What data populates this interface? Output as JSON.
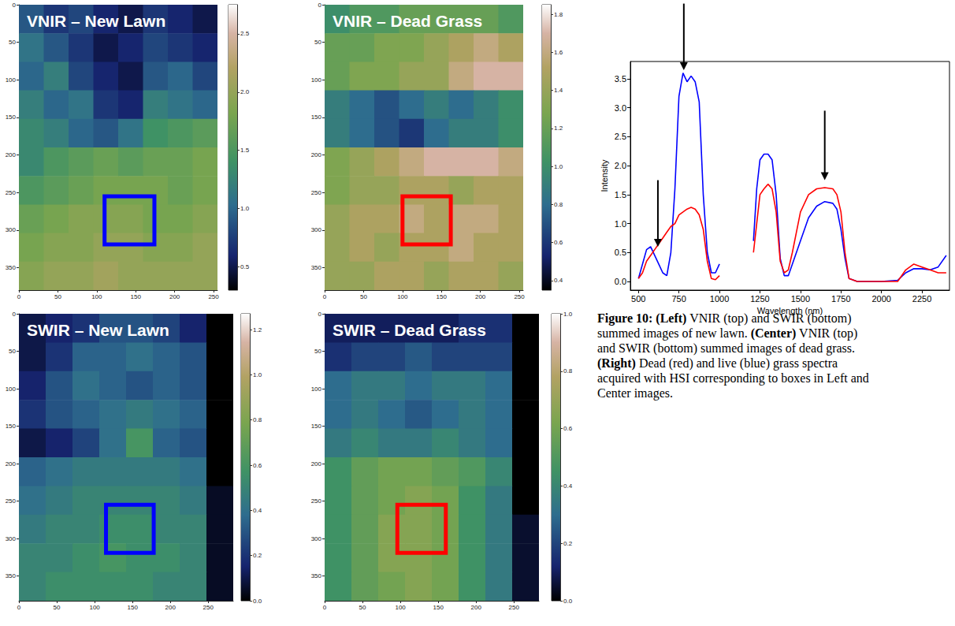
{
  "chart_data": [
    {
      "type": "heatmap",
      "title": "VNIR – New Lawn",
      "xlim": [
        0,
        255
      ],
      "ylim": [
        0,
        380
      ],
      "xticks": [
        0,
        50,
        100,
        150,
        200,
        250
      ],
      "yticks": [
        0,
        50,
        100,
        150,
        200,
        250,
        300,
        350
      ],
      "cells": [
        [
          0.9,
          0.7,
          0.8,
          0.6,
          0.5,
          0.7,
          0.6,
          0.5
        ],
        [
          1.1,
          0.9,
          0.7,
          0.5,
          0.6,
          0.8,
          0.7,
          0.6
        ],
        [
          1.0,
          1.2,
          0.8,
          0.6,
          0.5,
          0.9,
          1.0,
          0.8
        ],
        [
          1.2,
          1.0,
          1.1,
          0.7,
          0.6,
          1.2,
          1.1,
          1.0
        ],
        [
          1.3,
          1.2,
          1.0,
          0.9,
          1.1,
          1.4,
          1.5,
          1.6
        ],
        [
          1.3,
          1.5,
          1.6,
          1.7,
          1.6,
          1.7,
          1.7,
          1.8
        ],
        [
          1.5,
          1.6,
          1.7,
          1.8,
          1.8,
          1.8,
          1.7,
          1.8
        ],
        [
          1.7,
          1.8,
          1.9,
          1.9,
          1.9,
          1.8,
          1.8,
          1.9
        ],
        [
          1.8,
          1.9,
          1.9,
          2.0,
          2.0,
          1.9,
          1.9,
          2.0
        ],
        [
          1.9,
          2.0,
          2.0,
          2.1,
          2.0,
          2.0,
          2.0,
          2.0
        ]
      ],
      "colorbar": {
        "range": [
          0.3,
          2.75
        ],
        "ticks": [
          0.5,
          {
            "value": 1,
            "label": "1.0"
          },
          1.5,
          {
            "value": 2,
            "label": "2.0"
          },
          2.5
        ]
      },
      "region": {
        "x": [
          110,
          174
        ],
        "y": [
          255,
          319
        ],
        "color": "#0000ff"
      }
    },
    {
      "type": "heatmap",
      "title": "VNIR – Dead Grass",
      "xlim": [
        0,
        255
      ],
      "ylim": [
        0,
        380
      ],
      "xticks": [
        0,
        50,
        100,
        150,
        200,
        250
      ],
      "yticks": [
        0,
        50,
        100,
        150,
        200,
        250,
        300,
        350
      ],
      "cells": [
        [
          1.0,
          1.1,
          1.1,
          1.2,
          1.2,
          1.2,
          1.2,
          1.1
        ],
        [
          1.2,
          1.2,
          1.3,
          1.3,
          1.4,
          1.5,
          1.6,
          1.5
        ],
        [
          1.2,
          1.3,
          1.3,
          1.4,
          1.4,
          1.6,
          1.7,
          1.7
        ],
        [
          0.9,
          0.8,
          0.7,
          0.8,
          0.9,
          0.8,
          0.9,
          1.0
        ],
        [
          0.9,
          0.8,
          0.7,
          0.6,
          0.8,
          0.9,
          0.9,
          1.0
        ],
        [
          1.3,
          1.4,
          1.5,
          1.6,
          1.7,
          1.7,
          1.7,
          1.6
        ],
        [
          1.3,
          1.4,
          1.4,
          1.5,
          1.5,
          1.4,
          1.5,
          1.5
        ],
        [
          1.4,
          1.5,
          1.5,
          1.6,
          1.5,
          1.6,
          1.6,
          1.5
        ],
        [
          1.4,
          1.5,
          1.4,
          1.5,
          1.5,
          1.6,
          1.5,
          1.5
        ],
        [
          1.4,
          1.4,
          1.5,
          1.5,
          1.4,
          1.5,
          1.5,
          1.4
        ]
      ],
      "colorbar": {
        "range": [
          0.35,
          1.85
        ],
        "ticks": [
          0.4,
          0.6,
          0.8,
          {
            "value": 1,
            "label": "1.0"
          },
          1.2,
          1.4,
          1.6,
          1.8
        ]
      },
      "region": {
        "x": [
          100,
          162
        ],
        "y": [
          255,
          319
        ],
        "color": "#ff0000"
      }
    },
    {
      "type": "heatmap",
      "title": "SWIR – New Lawn",
      "xlim": [
        0,
        283
      ],
      "ylim": [
        0,
        383
      ],
      "xticks": [
        0,
        50,
        100,
        150,
        200,
        250
      ],
      "yticks": [
        0,
        50,
        100,
        150,
        200,
        250,
        300,
        350
      ],
      "cells": [
        [
          0.1,
          0.15,
          0.2,
          0.3,
          0.3,
          0.25,
          0.15,
          0.0
        ],
        [
          0.1,
          0.2,
          0.35,
          0.35,
          0.4,
          0.35,
          0.3,
          0.0
        ],
        [
          0.15,
          0.3,
          0.4,
          0.35,
          0.3,
          0.35,
          0.3,
          0.0
        ],
        [
          0.2,
          0.3,
          0.35,
          0.4,
          0.45,
          0.4,
          0.35,
          0.0
        ],
        [
          0.1,
          0.15,
          0.25,
          0.4,
          0.6,
          0.35,
          0.3,
          0.0
        ],
        [
          0.35,
          0.4,
          0.45,
          0.45,
          0.45,
          0.45,
          0.4,
          0.0
        ],
        [
          0.4,
          0.45,
          0.5,
          0.5,
          0.5,
          0.5,
          0.45,
          0.05
        ],
        [
          0.45,
          0.5,
          0.5,
          0.55,
          0.55,
          0.5,
          0.5,
          0.05
        ],
        [
          0.5,
          0.5,
          0.55,
          0.6,
          0.55,
          0.55,
          0.5,
          0.05
        ],
        [
          0.5,
          0.55,
          0.55,
          0.55,
          0.55,
          0.5,
          0.5,
          0.05
        ]
      ],
      "colorbar": {
        "range": [
          0,
          1.27
        ],
        "ticks": [
          {
            "value": 0,
            "label": "0.0"
          },
          0.2,
          0.4,
          0.6,
          0.8,
          {
            "value": 1,
            "label": "1.0"
          },
          1.2
        ]
      },
      "region": {
        "x": [
          115,
          178
        ],
        "y": [
          255,
          319
        ],
        "color": "#0000ff"
      }
    },
    {
      "type": "heatmap",
      "title": "SWIR – Dead Grass",
      "xlim": [
        0,
        283
      ],
      "ylim": [
        0,
        383
      ],
      "xticks": [
        0,
        50,
        100,
        150,
        200,
        250
      ],
      "yticks": [
        0,
        50,
        100,
        150,
        200,
        250,
        300,
        350
      ],
      "cells": [
        [
          0.1,
          0.1,
          0.1,
          0.1,
          0.1,
          0.15,
          0.15,
          0.0
        ],
        [
          0.15,
          0.2,
          0.2,
          0.25,
          0.2,
          0.2,
          0.2,
          0.0
        ],
        [
          0.3,
          0.35,
          0.35,
          0.3,
          0.35,
          0.35,
          0.3,
          0.0
        ],
        [
          0.3,
          0.35,
          0.3,
          0.25,
          0.3,
          0.35,
          0.3,
          0.0
        ],
        [
          0.35,
          0.4,
          0.35,
          0.35,
          0.4,
          0.35,
          0.3,
          0.0
        ],
        [
          0.45,
          0.55,
          0.6,
          0.6,
          0.55,
          0.5,
          0.4,
          0.0
        ],
        [
          0.45,
          0.55,
          0.6,
          0.65,
          0.6,
          0.45,
          0.35,
          0.0
        ],
        [
          0.45,
          0.55,
          0.65,
          0.65,
          0.6,
          0.45,
          0.35,
          0.05
        ],
        [
          0.45,
          0.55,
          0.65,
          0.65,
          0.6,
          0.45,
          0.35,
          0.05
        ],
        [
          0.45,
          0.55,
          0.6,
          0.65,
          0.6,
          0.45,
          0.35,
          0.05
        ]
      ],
      "colorbar": {
        "range": [
          0,
          1.0
        ],
        "ticks": [
          {
            "value": 0,
            "label": "0.0"
          },
          0.2,
          0.4,
          0.6,
          0.8,
          {
            "value": 1,
            "label": "1.0"
          }
        ]
      },
      "region": {
        "x": [
          96,
          160
        ],
        "y": [
          255,
          319
        ],
        "color": "#ff0000"
      }
    },
    {
      "type": "line",
      "x_label": "Wavelength (nm)",
      "y_label": "Intensity",
      "xlim": [
        450,
        2420
      ],
      "ylim": [
        -0.15,
        3.8
      ],
      "xticks": [
        500,
        750,
        1000,
        1250,
        1500,
        1750,
        2000,
        2250
      ],
      "yticks": [
        {
          "value": 0,
          "label": "0.0"
        },
        0.5,
        {
          "value": 1,
          "label": "1.0"
        },
        1.5,
        {
          "value": 2,
          "label": "2.0"
        },
        2.5,
        {
          "value": 3,
          "label": "3.0"
        },
        3.5
      ],
      "x": [
        500,
        525,
        550,
        575,
        600,
        625,
        650,
        675,
        700,
        725,
        750,
        775,
        800,
        825,
        850,
        875,
        900,
        925,
        950,
        975,
        1000,
        1100,
        1210,
        1230,
        1250,
        1275,
        1300,
        1325,
        1350,
        1375,
        1400,
        1425,
        1450,
        1500,
        1550,
        1600,
        1650,
        1700,
        1725,
        1750,
        1775,
        1800,
        1850,
        1900,
        2000,
        2100,
        2150,
        2200,
        2250,
        2300,
        2350,
        2400
      ],
      "series": [
        {
          "color": "#0000ff",
          "values": [
            0.05,
            0.3,
            0.55,
            0.6,
            0.45,
            0.3,
            0.15,
            0.1,
            0.5,
            1.6,
            3.2,
            3.6,
            3.45,
            3.55,
            3.45,
            3.1,
            1.5,
            0.5,
            0.15,
            0.15,
            0.3,
            null,
            0.7,
            1.6,
            2.1,
            2.2,
            2.2,
            2.1,
            1.5,
            0.4,
            0.1,
            0.1,
            0.3,
            0.7,
            1.1,
            1.3,
            1.38,
            1.35,
            1.25,
            0.9,
            0.4,
            0.05,
            0.0,
            0.0,
            0.0,
            0.02,
            0.15,
            0.22,
            0.22,
            0.2,
            0.25,
            0.45
          ]
        },
        {
          "color": "#ff0000",
          "values": [
            0.05,
            0.15,
            0.35,
            0.45,
            0.55,
            0.65,
            0.75,
            0.85,
            0.95,
            1.0,
            1.15,
            1.2,
            1.25,
            1.28,
            1.25,
            1.15,
            0.9,
            0.35,
            0.05,
            0.03,
            0.1,
            null,
            0.5,
            1.0,
            1.5,
            1.6,
            1.68,
            1.6,
            1.2,
            0.35,
            0.15,
            0.2,
            0.5,
            1.2,
            1.5,
            1.6,
            1.62,
            1.6,
            1.5,
            1.2,
            0.5,
            0.05,
            0.0,
            0.0,
            0.0,
            0.0,
            0.2,
            0.3,
            0.25,
            0.2,
            0.15,
            0.15
          ]
        }
      ],
      "arrows": [
        {
          "x": 780,
          "from": 4.8,
          "to": 3.65
        },
        {
          "x": 620,
          "from": 1.75,
          "to": 0.6
        },
        {
          "x": 1650,
          "from": 2.95,
          "to": 1.75
        }
      ]
    }
  ],
  "caption": [
    {
      "text": "Figure 10:",
      "bold": true
    },
    {
      "text": " "
    },
    {
      "text": "(Left)",
      "bold": true
    },
    {
      "text": " VNIR (top) and SWIR (bottom) summed images of new lawn. "
    },
    {
      "text": "(Center)",
      "bold": true
    },
    {
      "text": " VNIR (top) and SWIR (bottom) summed images of dead grass. "
    },
    {
      "text": "(Right)",
      "bold": true
    },
    {
      "text": " Dead (red) and live (blue) grass spectra acquired with HSI corresponding to boxes in Left and Center images."
    }
  ]
}
